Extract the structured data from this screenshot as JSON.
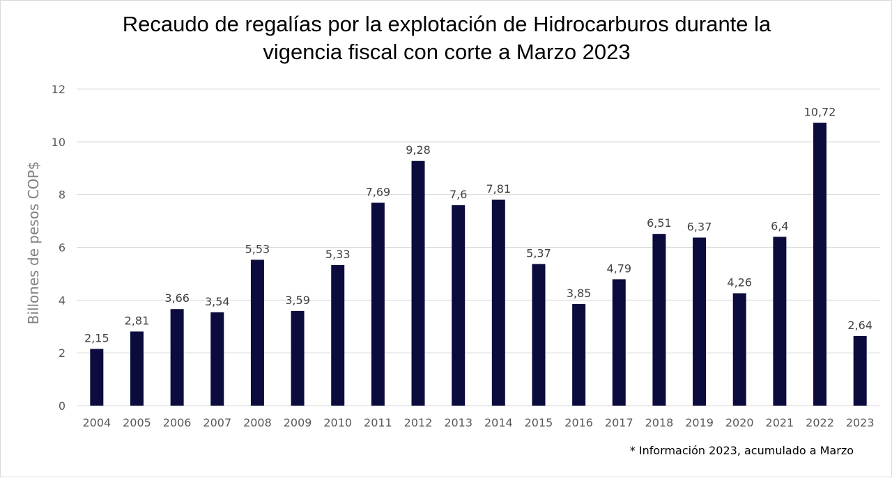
{
  "chart_data": {
    "type": "bar",
    "title": "Recaudo de regalías por la explotación de Hidrocarburos durante la\nvigencia fiscal  con corte a Marzo 2023",
    "xlabel": "",
    "ylabel": "Billones de pesos COP$",
    "categories": [
      "2004",
      "2005",
      "2006",
      "2007",
      "2008",
      "2009",
      "2010",
      "2011",
      "2012",
      "2013",
      "2014",
      "2015",
      "2016",
      "2017",
      "2018",
      "2019",
      "2020",
      "2021",
      "2022",
      "2023"
    ],
    "values": [
      2.15,
      2.81,
      3.66,
      3.54,
      5.53,
      3.59,
      5.33,
      7.69,
      9.28,
      7.6,
      7.81,
      5.37,
      3.85,
      4.79,
      6.51,
      6.37,
      4.26,
      6.4,
      10.72,
      2.64
    ],
    "data_labels": [
      "2,15",
      "2,81",
      "3,66",
      "3,54",
      "5,53",
      "3,59",
      "5,33",
      "7,69",
      "9,28",
      "7,6",
      "7,81",
      "5,37",
      "3,85",
      "4,79",
      "6,51",
      "6,37",
      "4,26",
      "6,4",
      "10,72",
      "2,64"
    ],
    "ylim": [
      0,
      12
    ],
    "yticks": [
      0,
      2,
      4,
      6,
      8,
      10,
      12
    ],
    "grid": true,
    "legend": "none",
    "annotation": "* Información 2023, acumulado a Marzo",
    "colors": {
      "bar": "#0b0c3d",
      "grid": "#d9d9d9",
      "tick_label": "#595959",
      "data_label": "#404040"
    }
  }
}
